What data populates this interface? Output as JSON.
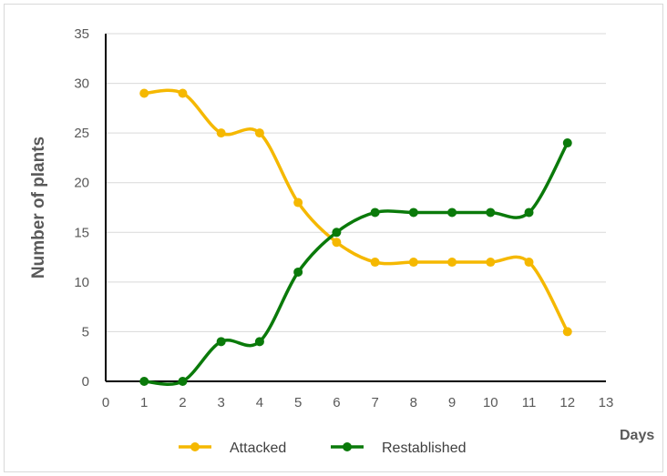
{
  "chart_data": {
    "type": "line",
    "title": "",
    "xlabel": "Days",
    "ylabel": "Number of plants",
    "xlim": [
      0,
      13
    ],
    "ylim": [
      0,
      35
    ],
    "x_ticks": [
      0,
      1,
      2,
      3,
      4,
      5,
      6,
      7,
      8,
      9,
      10,
      11,
      12,
      13
    ],
    "y_ticks": [
      0,
      5,
      10,
      15,
      20,
      25,
      30,
      35
    ],
    "grid": "horizontal",
    "legend_position": "bottom",
    "x": [
      1,
      2,
      3,
      4,
      5,
      6,
      7,
      8,
      9,
      10,
      11,
      12
    ],
    "series": [
      {
        "name": "Attacked",
        "color": "#f5b800",
        "values": [
          29,
          29,
          25,
          25,
          18,
          14,
          12,
          12,
          12,
          12,
          12,
          5
        ]
      },
      {
        "name": "Restablished",
        "color": "#0a7a0a",
        "values": [
          0,
          0,
          4,
          4,
          11,
          15,
          17,
          17,
          17,
          17,
          17,
          24
        ]
      }
    ]
  }
}
